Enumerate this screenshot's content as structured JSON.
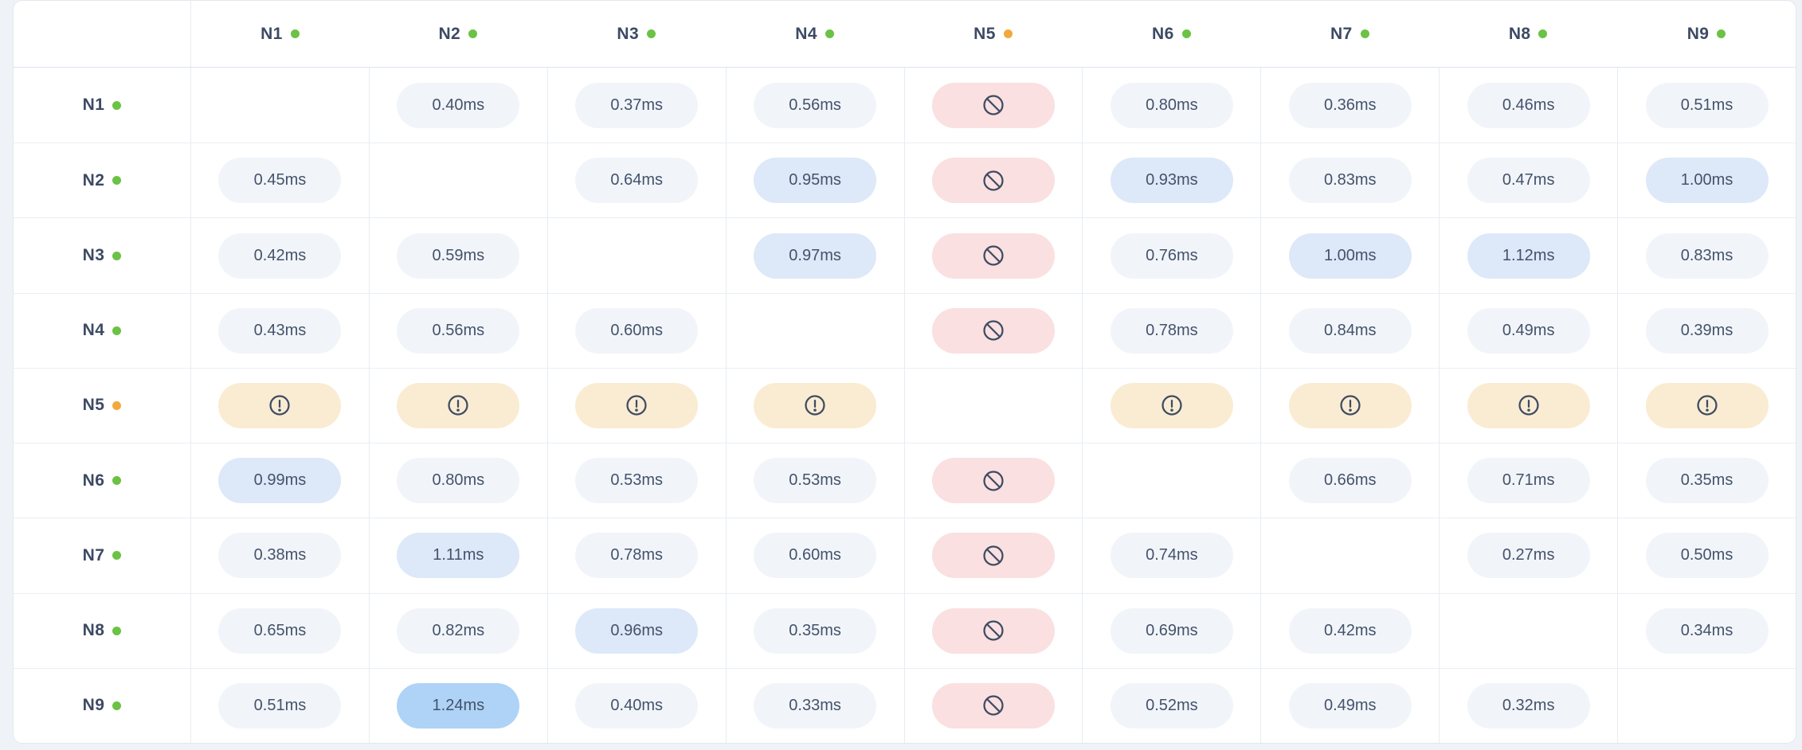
{
  "app": {
    "view_title": "node-latency-matrix",
    "unit": "ms"
  },
  "colors": {
    "page_bg": "#eff2f7",
    "card_bg": "#ffffff",
    "card_border": "#e3e8ef",
    "grid_line": "#e7ecf2",
    "row_line": "#eaeef4",
    "header_line": "#dde3ec",
    "label_text": "#3d4a63",
    "value_text": "#44526b",
    "dot_ok": "#6bc244",
    "dot_warn": "#f2a93b",
    "pill_neutral": "#f1f5f9",
    "pill_elevated": "#dde9f8",
    "pill_high": "#aed3f6",
    "pill_blocked": "#fae0e0",
    "pill_warning": "#faecd2",
    "icon": "#3f4c63"
  },
  "icons": {
    "blocked": "ban-icon",
    "warning": "alert-circle-icon",
    "status": "status-dot"
  },
  "columns": [
    {
      "id": "N1",
      "status": "ok"
    },
    {
      "id": "N2",
      "status": "ok"
    },
    {
      "id": "N3",
      "status": "ok"
    },
    {
      "id": "N4",
      "status": "ok"
    },
    {
      "id": "N5",
      "status": "warn"
    },
    {
      "id": "N6",
      "status": "ok"
    },
    {
      "id": "N7",
      "status": "ok"
    },
    {
      "id": "N8",
      "status": "ok"
    },
    {
      "id": "N9",
      "status": "ok"
    }
  ],
  "rows": [
    {
      "id": "N1",
      "status": "ok",
      "cells": [
        {
          "type": "self"
        },
        {
          "type": "latency",
          "value": "0.40ms",
          "tone": "neutral"
        },
        {
          "type": "latency",
          "value": "0.37ms",
          "tone": "neutral"
        },
        {
          "type": "latency",
          "value": "0.56ms",
          "tone": "neutral"
        },
        {
          "type": "blocked"
        },
        {
          "type": "latency",
          "value": "0.80ms",
          "tone": "neutral"
        },
        {
          "type": "latency",
          "value": "0.36ms",
          "tone": "neutral"
        },
        {
          "type": "latency",
          "value": "0.46ms",
          "tone": "neutral"
        },
        {
          "type": "latency",
          "value": "0.51ms",
          "tone": "neutral"
        }
      ]
    },
    {
      "id": "N2",
      "status": "ok",
      "cells": [
        {
          "type": "latency",
          "value": "0.45ms",
          "tone": "neutral"
        },
        {
          "type": "self"
        },
        {
          "type": "latency",
          "value": "0.64ms",
          "tone": "neutral"
        },
        {
          "type": "latency",
          "value": "0.95ms",
          "tone": "elevated"
        },
        {
          "type": "blocked"
        },
        {
          "type": "latency",
          "value": "0.93ms",
          "tone": "elevated"
        },
        {
          "type": "latency",
          "value": "0.83ms",
          "tone": "neutral"
        },
        {
          "type": "latency",
          "value": "0.47ms",
          "tone": "neutral"
        },
        {
          "type": "latency",
          "value": "1.00ms",
          "tone": "elevated"
        }
      ]
    },
    {
      "id": "N3",
      "status": "ok",
      "cells": [
        {
          "type": "latency",
          "value": "0.42ms",
          "tone": "neutral"
        },
        {
          "type": "latency",
          "value": "0.59ms",
          "tone": "neutral"
        },
        {
          "type": "self"
        },
        {
          "type": "latency",
          "value": "0.97ms",
          "tone": "elevated"
        },
        {
          "type": "blocked"
        },
        {
          "type": "latency",
          "value": "0.76ms",
          "tone": "neutral"
        },
        {
          "type": "latency",
          "value": "1.00ms",
          "tone": "elevated"
        },
        {
          "type": "latency",
          "value": "1.12ms",
          "tone": "elevated"
        },
        {
          "type": "latency",
          "value": "0.83ms",
          "tone": "neutral"
        }
      ]
    },
    {
      "id": "N4",
      "status": "ok",
      "cells": [
        {
          "type": "latency",
          "value": "0.43ms",
          "tone": "neutral"
        },
        {
          "type": "latency",
          "value": "0.56ms",
          "tone": "neutral"
        },
        {
          "type": "latency",
          "value": "0.60ms",
          "tone": "neutral"
        },
        {
          "type": "self"
        },
        {
          "type": "blocked"
        },
        {
          "type": "latency",
          "value": "0.78ms",
          "tone": "neutral"
        },
        {
          "type": "latency",
          "value": "0.84ms",
          "tone": "neutral"
        },
        {
          "type": "latency",
          "value": "0.49ms",
          "tone": "neutral"
        },
        {
          "type": "latency",
          "value": "0.39ms",
          "tone": "neutral"
        }
      ]
    },
    {
      "id": "N5",
      "status": "warn",
      "cells": [
        {
          "type": "warning"
        },
        {
          "type": "warning"
        },
        {
          "type": "warning"
        },
        {
          "type": "warning"
        },
        {
          "type": "self"
        },
        {
          "type": "warning"
        },
        {
          "type": "warning"
        },
        {
          "type": "warning"
        },
        {
          "type": "warning"
        }
      ]
    },
    {
      "id": "N6",
      "status": "ok",
      "cells": [
        {
          "type": "latency",
          "value": "0.99ms",
          "tone": "elevated"
        },
        {
          "type": "latency",
          "value": "0.80ms",
          "tone": "neutral"
        },
        {
          "type": "latency",
          "value": "0.53ms",
          "tone": "neutral"
        },
        {
          "type": "latency",
          "value": "0.53ms",
          "tone": "neutral"
        },
        {
          "type": "blocked"
        },
        {
          "type": "self"
        },
        {
          "type": "latency",
          "value": "0.66ms",
          "tone": "neutral"
        },
        {
          "type": "latency",
          "value": "0.71ms",
          "tone": "neutral"
        },
        {
          "type": "latency",
          "value": "0.35ms",
          "tone": "neutral"
        }
      ]
    },
    {
      "id": "N7",
      "status": "ok",
      "cells": [
        {
          "type": "latency",
          "value": "0.38ms",
          "tone": "neutral"
        },
        {
          "type": "latency",
          "value": "1.11ms",
          "tone": "elevated"
        },
        {
          "type": "latency",
          "value": "0.78ms",
          "tone": "neutral"
        },
        {
          "type": "latency",
          "value": "0.60ms",
          "tone": "neutral"
        },
        {
          "type": "blocked"
        },
        {
          "type": "latency",
          "value": "0.74ms",
          "tone": "neutral"
        },
        {
          "type": "self"
        },
        {
          "type": "latency",
          "value": "0.27ms",
          "tone": "neutral"
        },
        {
          "type": "latency",
          "value": "0.50ms",
          "tone": "neutral"
        }
      ]
    },
    {
      "id": "N8",
      "status": "ok",
      "cells": [
        {
          "type": "latency",
          "value": "0.65ms",
          "tone": "neutral"
        },
        {
          "type": "latency",
          "value": "0.82ms",
          "tone": "neutral"
        },
        {
          "type": "latency",
          "value": "0.96ms",
          "tone": "elevated"
        },
        {
          "type": "latency",
          "value": "0.35ms",
          "tone": "neutral"
        },
        {
          "type": "blocked"
        },
        {
          "type": "latency",
          "value": "0.69ms",
          "tone": "neutral"
        },
        {
          "type": "latency",
          "value": "0.42ms",
          "tone": "neutral"
        },
        {
          "type": "self"
        },
        {
          "type": "latency",
          "value": "0.34ms",
          "tone": "neutral"
        }
      ]
    },
    {
      "id": "N9",
      "status": "ok",
      "cells": [
        {
          "type": "latency",
          "value": "0.51ms",
          "tone": "neutral"
        },
        {
          "type": "latency",
          "value": "1.24ms",
          "tone": "high"
        },
        {
          "type": "latency",
          "value": "0.40ms",
          "tone": "neutral"
        },
        {
          "type": "latency",
          "value": "0.33ms",
          "tone": "neutral"
        },
        {
          "type": "blocked"
        },
        {
          "type": "latency",
          "value": "0.52ms",
          "tone": "neutral"
        },
        {
          "type": "latency",
          "value": "0.49ms",
          "tone": "neutral"
        },
        {
          "type": "latency",
          "value": "0.32ms",
          "tone": "neutral"
        },
        {
          "type": "self"
        }
      ]
    }
  ]
}
